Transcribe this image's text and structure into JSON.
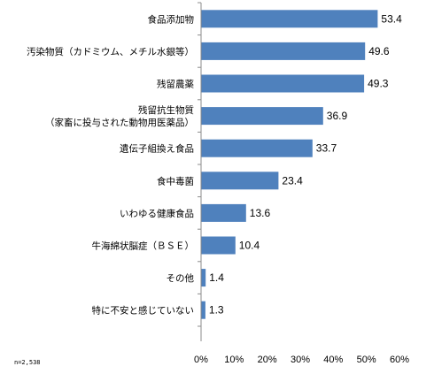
{
  "chart_data": {
    "type": "bar",
    "orientation": "horizontal",
    "categories": [
      [
        "食品添加物"
      ],
      [
        "汚染物質（カドミウム、メチル水銀等）"
      ],
      [
        "残留農薬"
      ],
      [
        "残留抗生物質",
        "（家畜に投与された動物用医薬品）"
      ],
      [
        "遺伝子組換え食品"
      ],
      [
        "食中毒菌"
      ],
      [
        "いわゆる健康食品"
      ],
      [
        "牛海綿状脳症（ＢＳＥ）"
      ],
      [
        "その他"
      ],
      [
        "特に不安と感じていない"
      ]
    ],
    "values": [
      53.4,
      49.6,
      49.3,
      36.9,
      33.7,
      23.4,
      13.6,
      10.4,
      1.4,
      1.3
    ],
    "value_labels": [
      "53.4",
      "49.6",
      "49.3",
      "36.9",
      "33.7",
      "23.4",
      "13.6",
      "10.4",
      "1.4",
      "1.3"
    ],
    "xlim": [
      0,
      60
    ],
    "x_ticks": [
      0,
      10,
      20,
      30,
      40,
      50,
      60
    ],
    "x_tick_labels": [
      "0%",
      "10%",
      "20%",
      "30%",
      "40%",
      "50%",
      "60%"
    ],
    "bar_color": "#4f81bd",
    "grid": false,
    "legend": "none"
  },
  "note": "n=2,538"
}
